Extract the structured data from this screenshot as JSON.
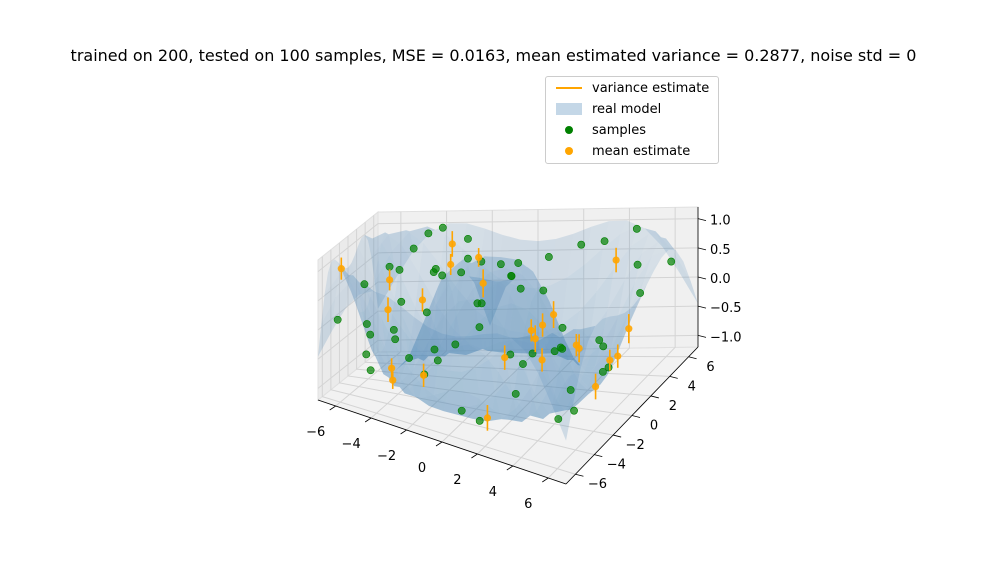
{
  "chart_data": {
    "type": "scatter",
    "title": "trained on 200, tested on 100 samples, MSE = 0.0163, mean estimated variance = 0.2877, noise std = 0",
    "xlabel": "",
    "ylabel": "",
    "zlabel": "",
    "x_ticks": [
      "−6",
      "−4",
      "−2",
      "0",
      "2",
      "4",
      "6"
    ],
    "y_ticks": [
      "−6",
      "−4",
      "−2",
      "0",
      "2",
      "4",
      "6"
    ],
    "z_ticks": [
      "−1.0",
      "−0.5",
      "0.0",
      "0.5",
      "1.0"
    ],
    "xlim": [
      -7,
      7
    ],
    "ylim": [
      -7,
      7
    ],
    "zlim": [
      -1.2,
      1.2
    ],
    "grid": true,
    "legend_position": "top-right",
    "legend": [
      {
        "label": "variance estimate",
        "marker": "line",
        "color": "#ffa500"
      },
      {
        "label": "real model",
        "marker": "patch",
        "color": "#4682b4"
      },
      {
        "label": "samples",
        "marker": "dot",
        "color": "#008000"
      },
      {
        "label": "mean estimate",
        "marker": "dot",
        "color": "#ffa500"
      }
    ],
    "surface_model": "sin(r) where r = sqrt(x^2 + y^2), for x, y in [-7, 7]",
    "series": [
      {
        "name": "samples",
        "color": "#008000",
        "points": [
          [
            -6.2,
            -5.8,
            0.18
          ],
          [
            -5.9,
            4.1,
            0.45
          ],
          [
            -5.6,
            -1.2,
            -0.95
          ],
          [
            -5.1,
            2.6,
            0.52
          ],
          [
            -4.8,
            -4.4,
            -0.05
          ],
          [
            -4.5,
            5.7,
            0.92
          ],
          [
            -4.2,
            0.8,
            -0.82
          ],
          [
            -3.9,
            -2.9,
            -0.18
          ],
          [
            -3.6,
            3.4,
            0.51
          ],
          [
            -3.2,
            -5.5,
            0.26
          ],
          [
            -2.9,
            1.9,
            0.55
          ],
          [
            -2.6,
            5.2,
            0.88
          ],
          [
            -2.3,
            -1.6,
            0.96
          ],
          [
            -2.0,
            -4.1,
            -0.53
          ],
          [
            -1.6,
            3.8,
            0.64
          ],
          [
            -1.2,
            -0.7,
            0.93
          ],
          [
            -0.9,
            6.1,
            0.16
          ],
          [
            -0.5,
            -6.3,
            0.07
          ],
          [
            -0.2,
            2.2,
            0.8
          ],
          [
            0.2,
            -2.4,
            0.67
          ],
          [
            0.5,
            4.6,
            -0.99
          ],
          [
            0.9,
            0.4,
            0.85
          ],
          [
            1.3,
            -5.0,
            -0.95
          ],
          [
            1.6,
            2.8,
            0.33
          ],
          [
            2.0,
            -1.3,
            0.9
          ],
          [
            2.4,
            5.5,
            0.78
          ],
          [
            2.7,
            -3.7,
            -0.54
          ],
          [
            3.1,
            1.2,
            -0.05
          ],
          [
            3.4,
            -6.0,
            0.51
          ],
          [
            3.8,
            3.9,
            -0.62
          ],
          [
            4.1,
            -0.3,
            -0.86
          ],
          [
            4.5,
            -2.7,
            -0.98
          ],
          [
            4.8,
            1.8,
            -0.83
          ],
          [
            5.2,
            4.8,
            0.56
          ],
          [
            5.5,
            -4.6,
            0.61
          ],
          [
            5.8,
            0.1,
            -0.45
          ],
          [
            6.1,
            2.9,
            0.39
          ],
          [
            6.4,
            -1.8,
            0.25
          ],
          [
            -6.5,
            1.4,
            0.31
          ],
          [
            -5.3,
            -3.3,
            -0.51
          ],
          [
            -4.0,
            6.3,
            0.97
          ],
          [
            -3.0,
            -0.4,
            0.12
          ],
          [
            -1.9,
            4.9,
            -0.19
          ],
          [
            -0.7,
            -3.1,
            -0.02
          ],
          [
            0.6,
            6.6,
            0.43
          ],
          [
            1.9,
            -6.5,
            0.9
          ],
          [
            3.3,
            5.9,
            0.79
          ],
          [
            4.7,
            6.0,
            0.99
          ],
          [
            5.9,
            -6.1,
            0.82
          ],
          [
            6.6,
            5.1,
            0.58
          ],
          [
            -6.0,
            -0.3,
            -0.24
          ],
          [
            -2.5,
            -6.4,
            0.89
          ],
          [
            1.0,
            1.1,
            0.99
          ],
          [
            2.2,
            3.6,
            -0.76
          ],
          [
            -1.4,
            1.0,
            0.98
          ],
          [
            3.6,
            -4.9,
            0.21
          ],
          [
            -3.4,
            2.4,
            -0.78
          ],
          [
            0.1,
            -4.4,
            -0.95
          ],
          [
            5.0,
            -2.0,
            -0.91
          ],
          [
            -5.0,
            5.0,
            0.71
          ]
        ]
      },
      {
        "name": "mean estimate",
        "color": "#ffa500",
        "points": [
          [
            -5.7,
            3.2,
            0.29,
            0.18
          ],
          [
            -4.3,
            -1.9,
            -0.99,
            0.15
          ],
          [
            -3.1,
            4.4,
            0.86,
            0.22
          ],
          [
            -2.2,
            -3.6,
            -0.61,
            0.2
          ],
          [
            -1.1,
            1.7,
            0.94,
            0.16
          ],
          [
            0.0,
            -1.0,
            0.84,
            0.24
          ],
          [
            0.8,
            3.5,
            -0.46,
            0.19
          ],
          [
            1.8,
            -2.9,
            -0.09,
            0.21
          ],
          [
            2.9,
            0.6,
            0.25,
            0.23
          ],
          [
            3.9,
            -3.2,
            0.66,
            0.2
          ],
          [
            4.6,
            3.1,
            -0.83,
            0.18
          ],
          [
            5.6,
            -0.9,
            -0.63,
            0.22
          ],
          [
            6.3,
            1.2,
            0.06,
            0.25
          ],
          [
            -6.3,
            -4.6,
            0.97,
            0.19
          ],
          [
            -4.9,
            0.2,
            -0.98,
            0.17
          ],
          [
            -3.7,
            -4.9,
            0.51,
            0.21
          ],
          [
            -1.7,
            -5.3,
            0.89,
            0.2
          ],
          [
            0.4,
            5.3,
            -0.82,
            0.23
          ],
          [
            2.6,
            4.3,
            -0.78,
            0.19
          ],
          [
            4.0,
            5.4,
            0.54,
            0.21
          ],
          [
            5.3,
            2.3,
            -0.62,
            0.2
          ],
          [
            6.0,
            -3.6,
            0.48,
            0.24
          ],
          [
            -2.8,
            3.0,
            0.64,
            0.18
          ],
          [
            1.4,
            -4.2,
            -0.99,
            0.22
          ],
          [
            3.2,
            -1.6,
            -0.21,
            0.2
          ]
        ]
      }
    ]
  }
}
